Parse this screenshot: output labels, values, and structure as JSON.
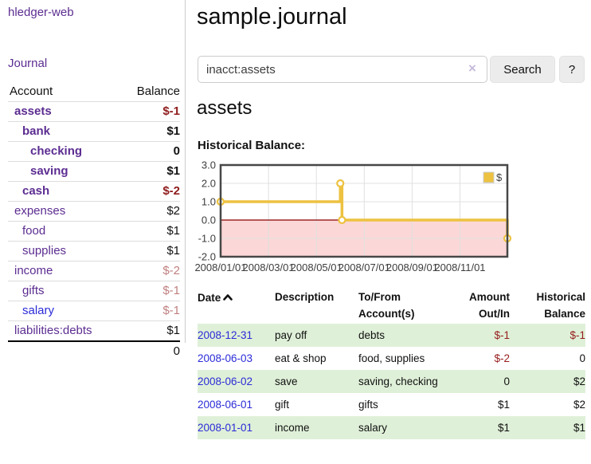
{
  "sidebar": {
    "app_title": "hledger-web",
    "journal_label": "Journal",
    "accounts_table": {
      "account_header": "Account",
      "balance_header": "Balance",
      "rows": [
        {
          "name": "assets",
          "balance": "$-1",
          "depth": 0,
          "bold": true,
          "name_color": "purple",
          "balance_color": "neg-strong"
        },
        {
          "name": "bank",
          "balance": "$1",
          "depth": 1,
          "bold": true,
          "name_color": "purple",
          "balance_color": "default"
        },
        {
          "name": "checking",
          "balance": "0",
          "depth": 2,
          "bold": true,
          "name_color": "purple",
          "balance_color": "default"
        },
        {
          "name": "saving",
          "balance": "$1",
          "depth": 2,
          "bold": true,
          "name_color": "purple",
          "balance_color": "default"
        },
        {
          "name": "cash",
          "balance": "$-2",
          "depth": 1,
          "bold": true,
          "name_color": "purple",
          "balance_color": "neg-strong"
        },
        {
          "name": "expenses",
          "balance": "$2",
          "depth": 0,
          "bold": false,
          "name_color": "purple",
          "balance_color": "default"
        },
        {
          "name": "food",
          "balance": "$1",
          "depth": 1,
          "bold": false,
          "name_color": "purple",
          "balance_color": "default"
        },
        {
          "name": "supplies",
          "balance": "$1",
          "depth": 1,
          "bold": false,
          "name_color": "purple",
          "balance_color": "default"
        },
        {
          "name": "income",
          "balance": "$-2",
          "depth": 0,
          "bold": false,
          "name_color": "purple",
          "balance_color": "neg-muted"
        },
        {
          "name": "gifts",
          "balance": "$-1",
          "depth": 1,
          "bold": false,
          "name_color": "purple",
          "balance_color": "neg-muted"
        },
        {
          "name": "salary",
          "balance": "$-1",
          "depth": 1,
          "bold": false,
          "name_color": "blue",
          "balance_color": "neg-muted"
        },
        {
          "name": "liabilities:debts",
          "balance": "$1",
          "depth": 0,
          "bold": false,
          "name_color": "purple",
          "balance_color": "default"
        }
      ],
      "total": "0"
    }
  },
  "main": {
    "title": "sample.journal",
    "search": {
      "value": "inacct:assets",
      "clear_icon": "×",
      "button_label": "Search",
      "help_label": "?"
    },
    "account_heading": "assets",
    "chart_label": "Historical Balance:"
  },
  "chart_data": {
    "type": "line",
    "title": "Historical Balance:",
    "step": true,
    "series": [
      {
        "name": "$",
        "color": "#edc240",
        "points": [
          {
            "date": "2008-01-01",
            "m": 0,
            "v": 1
          },
          {
            "date": "2008-06-01",
            "m": 5.0,
            "v": 2
          },
          {
            "date": "2008-06-03",
            "m": 5.07,
            "v": 0
          },
          {
            "date": "2008-12-31",
            "m": 11.98,
            "v": -1
          }
        ]
      }
    ],
    "x_ticks": [
      {
        "m": 0,
        "label": "2008/01/01"
      },
      {
        "m": 2,
        "label": "2008/03/01"
      },
      {
        "m": 4,
        "label": "2008/05/01"
      },
      {
        "m": 6,
        "label": "2008/07/01"
      },
      {
        "m": 8,
        "label": "2008/09/01"
      },
      {
        "m": 10,
        "label": "2008/11/01"
      }
    ],
    "y_ticks": [
      3.0,
      2.0,
      1.0,
      0.0,
      -1.0,
      -2.0
    ],
    "ylim": [
      -2,
      3
    ],
    "xlim_months": [
      0,
      11.98
    ],
    "grid": true,
    "legend_position": "top-right",
    "negative_fill": "#fbd7d7",
    "zero_line_color": "#8b0000",
    "grid_color": "#e0e0e0",
    "border_color": "#474747"
  },
  "register": {
    "headers": [
      "Date",
      "Description",
      "To/From Account(s)",
      "Amount Out/In",
      "Historical Balance"
    ],
    "rows": [
      {
        "date": "2008-12-31",
        "description": "pay off",
        "accounts": "debts",
        "amount": "$-1",
        "amount_negative": true,
        "balance": "$-1",
        "balance_negative": true,
        "shaded": true
      },
      {
        "date": "2008-06-03",
        "description": "eat & shop",
        "accounts": "food, supplies",
        "amount": "$-2",
        "amount_negative": true,
        "balance": "0",
        "balance_negative": false,
        "shaded": false
      },
      {
        "date": "2008-06-02",
        "description": "save",
        "accounts": "saving, checking",
        "amount": "0",
        "amount_negative": false,
        "balance": "$2",
        "balance_negative": false,
        "shaded": true
      },
      {
        "date": "2008-06-01",
        "description": "gift",
        "accounts": "gifts",
        "amount": "$1",
        "amount_negative": false,
        "balance": "$2",
        "balance_negative": false,
        "shaded": false
      },
      {
        "date": "2008-01-01",
        "description": "income",
        "accounts": "salary",
        "amount": "$1",
        "amount_negative": false,
        "balance": "$1",
        "balance_negative": false,
        "shaded": true
      }
    ]
  },
  "colors": {
    "link_purple": "#5c2d91",
    "link_blue": "#2b2bd8",
    "negative_strong": "#8f1d1d",
    "negative_muted": "#c08080",
    "row_shade_green": "#dff0d8",
    "series_gold": "#edc240",
    "chart_negative_region": "#fbd7d7",
    "chart_zero_line": "#8b0000"
  }
}
